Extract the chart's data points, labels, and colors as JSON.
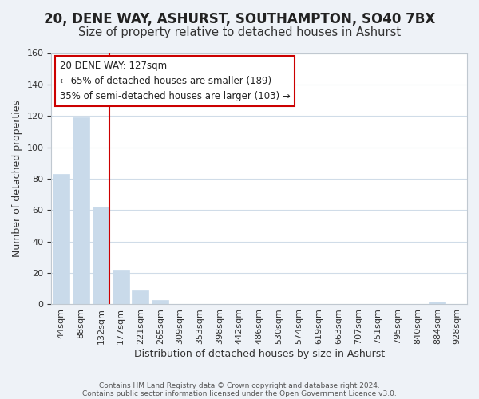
{
  "title": "20, DENE WAY, ASHURST, SOUTHAMPTON, SO40 7BX",
  "subtitle": "Size of property relative to detached houses in Ashurst",
  "xlabel": "Distribution of detached houses by size in Ashurst",
  "ylabel": "Number of detached properties",
  "bar_labels": [
    "44sqm",
    "88sqm",
    "132sqm",
    "177sqm",
    "221sqm",
    "265sqm",
    "309sqm",
    "353sqm",
    "398sqm",
    "442sqm",
    "486sqm",
    "530sqm",
    "574sqm",
    "619sqm",
    "663sqm",
    "707sqm",
    "751sqm",
    "795sqm",
    "840sqm",
    "884sqm",
    "928sqm"
  ],
  "bar_values": [
    83,
    119,
    62,
    22,
    9,
    3,
    0,
    0,
    0,
    0,
    0,
    0,
    0,
    0,
    0,
    0,
    0,
    0,
    0,
    2,
    0
  ],
  "bar_color": "#c9daea",
  "bar_edge_color": "#c9daea",
  "vline_color": "#cc0000",
  "vline_x_index": 2,
  "ylim": [
    0,
    160
  ],
  "yticks": [
    0,
    20,
    40,
    60,
    80,
    100,
    120,
    140,
    160
  ],
  "annotation_box_text_line1": "20 DENE WAY: 127sqm",
  "annotation_box_text_line2": "← 65% of detached houses are smaller (189)",
  "annotation_box_text_line3": "35% of semi-detached houses are larger (103) →",
  "footer_line1": "Contains HM Land Registry data © Crown copyright and database right 2024.",
  "footer_line2": "Contains public sector information licensed under the Open Government Licence v3.0.",
  "background_color": "#eef2f7",
  "plot_background_color": "#ffffff",
  "grid_color": "#d0dce8",
  "title_fontsize": 12,
  "subtitle_fontsize": 10.5,
  "axis_label_fontsize": 9,
  "tick_fontsize": 8
}
